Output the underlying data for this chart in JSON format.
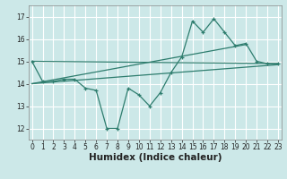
{
  "title": "",
  "xlabel": "Humidex (Indice chaleur)",
  "bg_color": "#cce8e8",
  "line_color": "#2e7d6e",
  "x_data": [
    0,
    1,
    2,
    3,
    4,
    5,
    6,
    7,
    8,
    9,
    10,
    11,
    12,
    13,
    14,
    15,
    16,
    17,
    18,
    19,
    20,
    21,
    22,
    23
  ],
  "y_main": [
    15.0,
    14.1,
    14.1,
    14.2,
    14.2,
    13.8,
    13.7,
    12.0,
    12.0,
    13.8,
    13.5,
    13.0,
    13.6,
    14.5,
    15.2,
    16.8,
    16.3,
    16.9,
    16.3,
    15.7,
    15.8,
    15.0,
    14.9,
    14.9
  ],
  "trend_line1_x": [
    0,
    23
  ],
  "trend_line1_y": [
    15.0,
    14.9
  ],
  "trend_line2_x": [
    0,
    20
  ],
  "trend_line2_y": [
    14.0,
    15.75
  ],
  "trend_line3_x": [
    0,
    23
  ],
  "trend_line3_y": [
    14.0,
    14.85
  ],
  "ylim": [
    11.5,
    17.5
  ],
  "xlim": [
    -0.3,
    23.3
  ],
  "yticks": [
    12,
    13,
    14,
    15,
    16,
    17
  ],
  "xticks": [
    0,
    1,
    2,
    3,
    4,
    5,
    6,
    7,
    8,
    9,
    10,
    11,
    12,
    13,
    14,
    15,
    16,
    17,
    18,
    19,
    20,
    21,
    22,
    23
  ],
  "grid_color": "white",
  "tick_fontsize": 5.5,
  "xlabel_fontsize": 7.5
}
